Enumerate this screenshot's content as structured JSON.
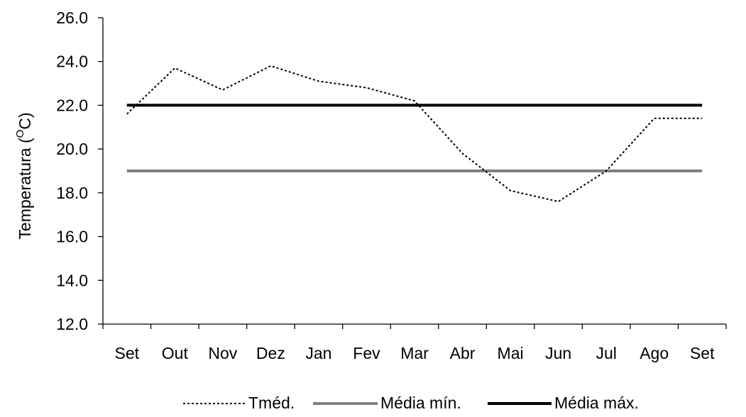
{
  "chart_data": {
    "type": "line",
    "title": "",
    "xlabel": "",
    "ylabel": "Temperatura (",
    "ylabel_sup": "O",
    "ylabel_end": "C)",
    "ylim": [
      12.0,
      26.0
    ],
    "yticks": [
      "12.0",
      "14.0",
      "16.0",
      "18.0",
      "20.0",
      "22.0",
      "24.0",
      "26.0"
    ],
    "categories": [
      "Set",
      "Out",
      "Nov",
      "Dez",
      "Jan",
      "Fev",
      "Mar",
      "Abr",
      "Mai",
      "Jun",
      "Jul",
      "Ago",
      "Set"
    ],
    "grid": false,
    "legend_position": "bottom",
    "series": [
      {
        "name": "Tméd.",
        "style": "dotted",
        "color": "#000000",
        "values": [
          21.6,
          23.7,
          22.7,
          23.8,
          23.1,
          22.8,
          22.2,
          19.8,
          18.1,
          17.6,
          19.0,
          21.4,
          21.4
        ]
      },
      {
        "name": "Média mín.",
        "style": "solid",
        "color": "#808080",
        "values": [
          19.0,
          19.0,
          19.0,
          19.0,
          19.0,
          19.0,
          19.0,
          19.0,
          19.0,
          19.0,
          19.0,
          19.0,
          19.0
        ]
      },
      {
        "name": "Média máx.",
        "style": "solid",
        "color": "#000000",
        "values": [
          22.0,
          22.0,
          22.0,
          22.0,
          22.0,
          22.0,
          22.0,
          22.0,
          22.0,
          22.0,
          22.0,
          22.0,
          22.0
        ]
      }
    ]
  }
}
